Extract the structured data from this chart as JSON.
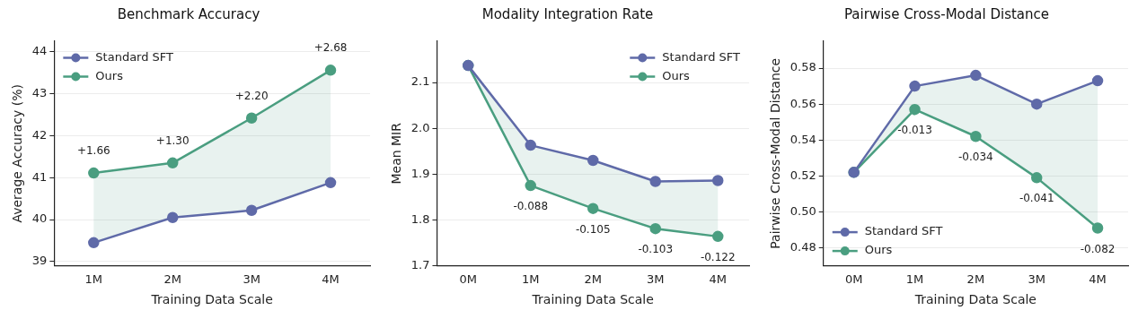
{
  "chart_data": [
    {
      "type": "line",
      "title": "Benchmark Accuracy",
      "xlabel": "Training Data Scale",
      "ylabel": "Average Accuracy (%)",
      "categories": [
        "1M",
        "2M",
        "3M",
        "4M"
      ],
      "series": [
        {
          "name": "Standard SFT",
          "color": "#5f6aa8",
          "values": [
            39.45,
            40.05,
            40.22,
            40.88
          ]
        },
        {
          "name": "Ours",
          "color": "#4a9e80",
          "values": [
            41.11,
            41.35,
            42.42,
            43.56
          ],
          "lower": [
            39.45,
            40.05,
            40.22,
            40.88
          ],
          "upper": [
            41.11,
            41.35,
            42.42,
            43.56
          ]
        }
      ],
      "ylim": [
        38.9,
        44.25
      ],
      "yticks": [
        39,
        40,
        41,
        42,
        43,
        44
      ],
      "grid": "y",
      "legend": "top left",
      "marker": "circle",
      "line_style": "solid",
      "annotations": [
        {
          "text": "+1.66",
          "x": "1M",
          "y": 41.11
        },
        {
          "text": "+1.30",
          "x": "2M",
          "y": 41.35
        },
        {
          "text": "+2.20",
          "x": "3M",
          "y": 42.42
        },
        {
          "text": "+2.68",
          "x": "4M",
          "y": 43.56
        }
      ]
    },
    {
      "type": "line",
      "title": "Modality Integration Rate",
      "xlabel": "Training Data Scale",
      "ylabel": "Mean MIR",
      "categories": [
        "0M",
        "1M",
        "2M",
        "3M",
        "4M"
      ],
      "series": [
        {
          "name": "Standard SFT",
          "color": "#5f6aa8",
          "values": [
            2.137,
            1.963,
            1.93,
            1.884,
            1.886
          ]
        },
        {
          "name": "Ours",
          "color": "#4a9e80",
          "values": [
            2.137,
            1.875,
            1.825,
            1.781,
            1.764
          ],
          "lower": [
            2.137,
            1.875,
            1.825,
            1.781,
            1.764
          ],
          "upper": [
            2.137,
            1.963,
            1.93,
            1.884,
            1.886
          ]
        }
      ],
      "ylim": [
        1.7,
        2.19
      ],
      "yticks": [
        {
          "value": 1.7,
          "label": "1.7"
        },
        {
          "value": 1.8,
          "label": "1.8"
        },
        {
          "value": 1.9,
          "label": "1.9"
        },
        {
          "value": 2.0,
          "label": "2.0"
        },
        {
          "value": 2.1,
          "label": "2.1"
        }
      ],
      "grid": "y",
      "legend": "top right",
      "marker": "circle",
      "line_style": "solid",
      "annotations": [
        {
          "text": "-0.088",
          "x": "1M",
          "y": 1.875
        },
        {
          "text": "-0.105",
          "x": "2M",
          "y": 1.825
        },
        {
          "text": "-0.103",
          "x": "3M",
          "y": 1.781
        },
        {
          "text": "-0.122",
          "x": "4M",
          "y": 1.764
        }
      ]
    },
    {
      "type": "line",
      "title": "Pairwise Cross-Modal Distance",
      "xlabel": "Training Data Scale",
      "ylabel": "Pairwise Cross-Modal Distance",
      "categories": [
        "0M",
        "1M",
        "2M",
        "3M",
        "4M"
      ],
      "series": [
        {
          "name": "Standard SFT",
          "color": "#5f6aa8",
          "values": [
            0.522,
            0.57,
            0.576,
            0.56,
            0.573
          ]
        },
        {
          "name": "Ours",
          "color": "#4a9e80",
          "values": [
            0.522,
            0.557,
            0.542,
            0.519,
            0.491
          ],
          "lower": [
            0.522,
            0.557,
            0.542,
            0.519,
            0.491
          ],
          "upper": [
            0.522,
            0.57,
            0.576,
            0.56,
            0.573
          ]
        }
      ],
      "ylim": [
        0.47,
        0.595
      ],
      "yticks": [
        {
          "value": 0.48,
          "label": "0.48"
        },
        {
          "value": 0.5,
          "label": "0.50"
        },
        {
          "value": 0.52,
          "label": "0.52"
        },
        {
          "value": 0.54,
          "label": "0.54"
        },
        {
          "value": 0.56,
          "label": "0.56"
        },
        {
          "value": 0.58,
          "label": "0.58"
        }
      ],
      "grid": "y",
      "legend": "bottom left",
      "marker": "circle",
      "line_style": "solid",
      "annotations": [
        {
          "text": "-0.013",
          "x": "1M",
          "y": 0.557
        },
        {
          "text": "-0.034",
          "x": "2M",
          "y": 0.542
        },
        {
          "text": "-0.041",
          "x": "3M",
          "y": 0.519
        },
        {
          "text": "-0.082",
          "x": "4M",
          "y": 0.491
        }
      ]
    }
  ]
}
